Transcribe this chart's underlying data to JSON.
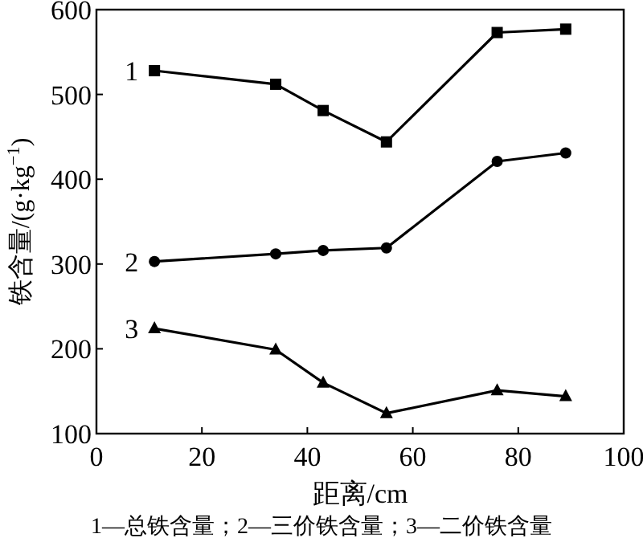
{
  "chart_data": {
    "type": "line",
    "xlabel": "距离/cm",
    "ylabel": "铁含量/(g·kg$^{−1}$)",
    "x": [
      11,
      34,
      43,
      55,
      76,
      89
    ],
    "series": [
      {
        "name": "1",
        "color": "#000000",
        "marker": "square",
        "values": [
          528,
          512,
          481,
          444,
          573,
          577
        ]
      },
      {
        "name": "2",
        "color": "#000000",
        "marker": "circle",
        "values": [
          303,
          312,
          316,
          319,
          421,
          431
        ]
      },
      {
        "name": "3",
        "color": "#000000",
        "marker": "triangle",
        "values": [
          224,
          199,
          160,
          124,
          151,
          144
        ]
      }
    ],
    "xlim": [
      0,
      100
    ],
    "xticks": [
      0,
      20,
      40,
      60,
      80,
      100
    ],
    "ylim": [
      100,
      600
    ],
    "yticks": [
      100,
      200,
      300,
      400,
      500,
      600
    ],
    "grid": false,
    "line_style": "solid",
    "annotations": [
      "1—总铁含量；2—三价铁含量；3—二价铁含量"
    ]
  }
}
